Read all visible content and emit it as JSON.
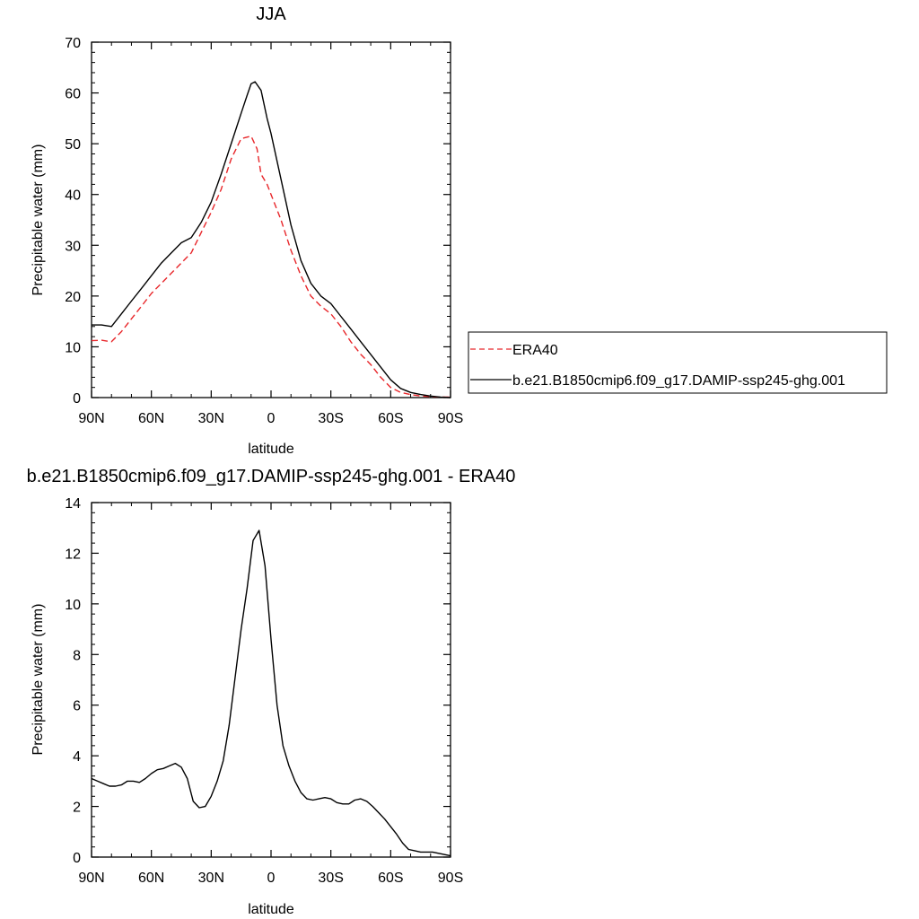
{
  "chart_data": [
    {
      "type": "line",
      "title": "JJA",
      "xlabel": "latitude",
      "ylabel": "Precipitable water (mm)",
      "xlim": [
        90,
        -90
      ],
      "ylim": [
        0,
        70
      ],
      "xticks": [
        90,
        60,
        30,
        0,
        -30,
        -60,
        -90
      ],
      "xtick_labels": [
        "90N",
        "60N",
        "30N",
        "0",
        "30S",
        "60S",
        "90S"
      ],
      "yticks": [
        0,
        10,
        20,
        30,
        40,
        50,
        60,
        70
      ],
      "ytick_labels": [
        "0",
        "10",
        "20",
        "30",
        "40",
        "50",
        "60",
        "70"
      ],
      "legend_position": "right",
      "series": [
        {
          "name": "ERA40",
          "color": "#e8262a",
          "dash": "dashed",
          "x": [
            90,
            85,
            80,
            75,
            70,
            65,
            60,
            55,
            50,
            45,
            40,
            35,
            30,
            25,
            20,
            15,
            10,
            7,
            5,
            2,
            0,
            -5,
            -10,
            -15,
            -20,
            -25,
            -30,
            -35,
            -40,
            -45,
            -50,
            -55,
            -60,
            -65,
            -70,
            -75,
            -80,
            -85,
            -90
          ],
          "y": [
            11.2,
            11.3,
            11.0,
            13.0,
            15.5,
            18.0,
            20.5,
            22.5,
            24.5,
            26.5,
            28.5,
            32.5,
            36.5,
            41.0,
            47.0,
            51.0,
            51.5,
            49.0,
            44.0,
            42.0,
            40.0,
            35.0,
            29.0,
            24.0,
            20.0,
            18.0,
            16.5,
            14.0,
            11.0,
            8.5,
            6.5,
            4.0,
            2.0,
            1.0,
            0.6,
            0.3,
            0.2,
            0.1,
            0.1
          ]
        },
        {
          "name": "b.e21.B1850cmip6.f09_g17.DAMIP-ssp245-ghg.001",
          "color": "#000000",
          "dash": "solid",
          "x": [
            90,
            85,
            80,
            75,
            70,
            65,
            60,
            55,
            50,
            45,
            40,
            35,
            30,
            25,
            20,
            15,
            12,
            10,
            8,
            5,
            2,
            0,
            -5,
            -10,
            -15,
            -20,
            -25,
            -30,
            -35,
            -40,
            -45,
            -50,
            -55,
            -60,
            -65,
            -70,
            -75,
            -80,
            -85,
            -90
          ],
          "y": [
            14.3,
            14.3,
            14.0,
            16.5,
            19.0,
            21.5,
            24.0,
            26.5,
            28.5,
            30.5,
            31.5,
            34.5,
            38.5,
            44.0,
            50.0,
            56.0,
            59.5,
            61.8,
            62.2,
            60.5,
            55.0,
            52.0,
            43.0,
            34.0,
            27.0,
            22.5,
            20.0,
            18.5,
            16.0,
            13.5,
            11.0,
            8.5,
            6.0,
            3.5,
            1.8,
            1.0,
            0.6,
            0.3,
            0.1,
            0.0
          ]
        }
      ]
    },
    {
      "type": "line",
      "title": "b.e21.B1850cmip6.f09_g17.DAMIP-ssp245-ghg.001 - ERA40",
      "xlabel": "latitude",
      "ylabel": "Precipitable water (mm)",
      "xlim": [
        90,
        -90
      ],
      "ylim": [
        0,
        14
      ],
      "xticks": [
        90,
        60,
        30,
        0,
        -30,
        -60,
        -90
      ],
      "xtick_labels": [
        "90N",
        "60N",
        "30N",
        "0",
        "30S",
        "60S",
        "90S"
      ],
      "yticks": [
        0,
        2,
        4,
        6,
        8,
        10,
        12,
        14
      ],
      "ytick_labels": [
        "0",
        "2",
        "4",
        "6",
        "8",
        "10",
        "12",
        "14"
      ],
      "series": [
        {
          "color": "#000000",
          "dash": "solid",
          "x": [
            90,
            87,
            84,
            81,
            78,
            75,
            72,
            69,
            66,
            63,
            60,
            57,
            54,
            51,
            48,
            45,
            42,
            39,
            36,
            33,
            30,
            27,
            24,
            21,
            18,
            15,
            12,
            9,
            6,
            3,
            0,
            -3,
            -6,
            -9,
            -12,
            -15,
            -18,
            -21,
            -24,
            -27,
            -30,
            -33,
            -36,
            -39,
            -42,
            -45,
            -48,
            -51,
            -54,
            -57,
            -60,
            -63,
            -66,
            -69,
            -72,
            -75,
            -78,
            -81,
            -84,
            -87,
            -90
          ],
          "y": [
            3.1,
            3.0,
            2.9,
            2.8,
            2.8,
            2.85,
            3.0,
            3.0,
            2.95,
            3.1,
            3.3,
            3.45,
            3.5,
            3.6,
            3.7,
            3.55,
            3.1,
            2.2,
            1.95,
            2.0,
            2.4,
            3.0,
            3.8,
            5.2,
            7.1,
            9.0,
            10.6,
            12.5,
            12.9,
            11.5,
            8.6,
            6.0,
            4.4,
            3.6,
            3.0,
            2.55,
            2.3,
            2.25,
            2.3,
            2.35,
            2.3,
            2.15,
            2.1,
            2.1,
            2.25,
            2.3,
            2.2,
            2.0,
            1.75,
            1.5,
            1.2,
            0.9,
            0.55,
            0.3,
            0.25,
            0.2,
            0.2,
            0.2,
            0.15,
            0.1,
            0.05
          ]
        }
      ]
    }
  ]
}
